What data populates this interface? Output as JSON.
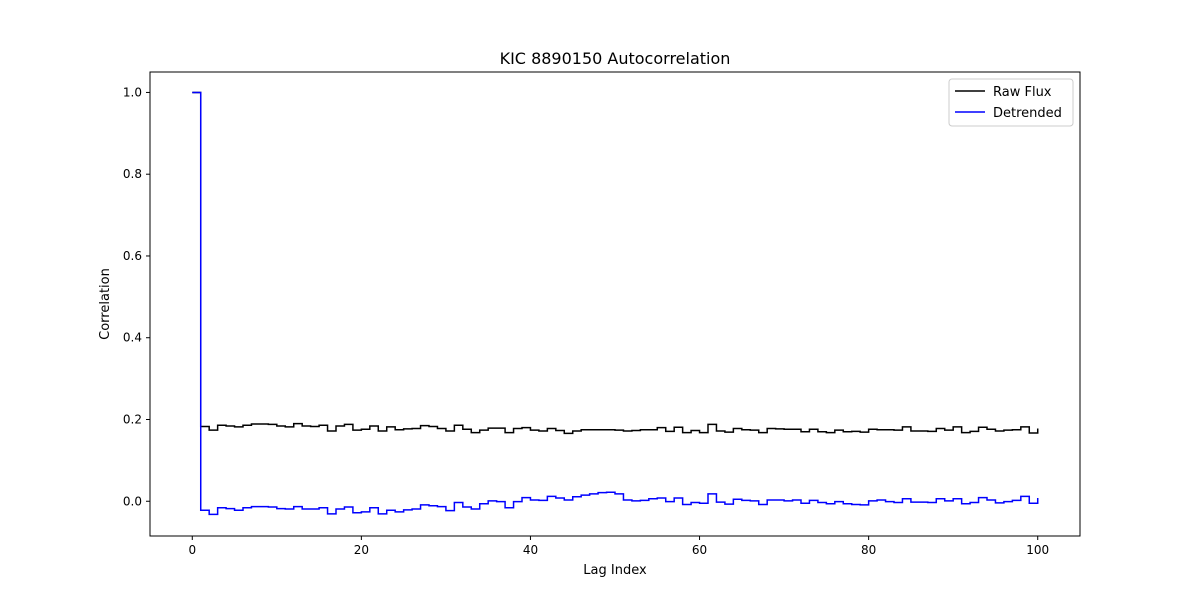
{
  "chart_data": {
    "type": "line",
    "drawstyle": "steps-post",
    "title": "KIC 8890150 Autocorrelation",
    "xlabel": "Lag Index",
    "ylabel": "Correlation",
    "xlim": [
      -5,
      105
    ],
    "ylim": [
      -0.085,
      1.05
    ],
    "xticks": [
      0,
      20,
      40,
      60,
      80,
      100
    ],
    "xtick_labels": [
      "0",
      "20",
      "40",
      "60",
      "80",
      "100"
    ],
    "yticks": [
      0.0,
      0.2,
      0.4,
      0.6,
      0.8,
      1.0
    ],
    "ytick_labels": [
      "0.0",
      "0.2",
      "0.4",
      "0.6",
      "0.8",
      "1.0"
    ],
    "grid": false,
    "legend_position": "upper right",
    "x": [
      0,
      1,
      2,
      3,
      4,
      5,
      6,
      7,
      8,
      9,
      10,
      11,
      12,
      13,
      14,
      15,
      16,
      17,
      18,
      19,
      20,
      21,
      22,
      23,
      24,
      25,
      26,
      27,
      28,
      29,
      30,
      31,
      32,
      33,
      34,
      35,
      36,
      37,
      38,
      39,
      40,
      41,
      42,
      43,
      44,
      45,
      46,
      47,
      48,
      49,
      50,
      51,
      52,
      53,
      54,
      55,
      56,
      57,
      58,
      59,
      60,
      61,
      62,
      63,
      64,
      65,
      66,
      67,
      68,
      69,
      70,
      71,
      72,
      73,
      74,
      75,
      76,
      77,
      78,
      79,
      80,
      81,
      82,
      83,
      84,
      85,
      86,
      87,
      88,
      89,
      90,
      91,
      92,
      93,
      94,
      95,
      96,
      97,
      98,
      99,
      100
    ],
    "series": [
      {
        "name": "Raw Flux",
        "color": "#000000",
        "values": [
          1.0,
          0.183,
          0.174,
          0.186,
          0.184,
          0.182,
          0.186,
          0.189,
          0.189,
          0.188,
          0.184,
          0.182,
          0.19,
          0.184,
          0.183,
          0.186,
          0.172,
          0.184,
          0.188,
          0.174,
          0.176,
          0.184,
          0.172,
          0.182,
          0.175,
          0.177,
          0.178,
          0.185,
          0.183,
          0.178,
          0.172,
          0.186,
          0.176,
          0.168,
          0.174,
          0.179,
          0.179,
          0.168,
          0.178,
          0.18,
          0.174,
          0.172,
          0.178,
          0.173,
          0.166,
          0.172,
          0.175,
          0.175,
          0.175,
          0.175,
          0.174,
          0.172,
          0.173,
          0.175,
          0.175,
          0.18,
          0.171,
          0.181,
          0.168,
          0.173,
          0.168,
          0.188,
          0.172,
          0.169,
          0.178,
          0.175,
          0.174,
          0.168,
          0.178,
          0.177,
          0.176,
          0.176,
          0.17,
          0.176,
          0.17,
          0.168,
          0.174,
          0.17,
          0.171,
          0.169,
          0.176,
          0.175,
          0.175,
          0.174,
          0.182,
          0.172,
          0.172,
          0.171,
          0.178,
          0.174,
          0.182,
          0.168,
          0.171,
          0.181,
          0.176,
          0.172,
          0.174,
          0.175,
          0.182,
          0.167,
          0.178
        ]
      },
      {
        "name": "Detrended",
        "color": "#0000ff",
        "values": [
          1.0,
          -0.022,
          -0.032,
          -0.016,
          -0.018,
          -0.022,
          -0.016,
          -0.013,
          -0.013,
          -0.014,
          -0.018,
          -0.019,
          -0.013,
          -0.019,
          -0.019,
          -0.016,
          -0.031,
          -0.019,
          -0.014,
          -0.028,
          -0.026,
          -0.016,
          -0.031,
          -0.022,
          -0.026,
          -0.021,
          -0.019,
          -0.009,
          -0.011,
          -0.013,
          -0.023,
          -0.003,
          -0.014,
          -0.019,
          -0.006,
          0.001,
          -0.001,
          -0.016,
          -0.001,
          0.009,
          0.003,
          0.002,
          0.012,
          0.008,
          0.003,
          0.011,
          0.015,
          0.018,
          0.021,
          0.022,
          0.018,
          0.003,
          0.001,
          0.002,
          0.006,
          0.008,
          -0.001,
          0.008,
          -0.008,
          -0.003,
          -0.005,
          0.018,
          -0.002,
          -0.007,
          0.005,
          0.002,
          0.001,
          -0.008,
          0.003,
          0.003,
          0.001,
          0.003,
          -0.005,
          0.002,
          -0.003,
          -0.006,
          -0.001,
          -0.006,
          -0.008,
          -0.009,
          0.001,
          0.003,
          -0.001,
          -0.003,
          0.006,
          -0.002,
          -0.002,
          -0.003,
          0.006,
          0.001,
          0.006,
          -0.006,
          -0.003,
          0.009,
          0.003,
          -0.004,
          -0.001,
          0.002,
          0.012,
          -0.005,
          0.008
        ]
      }
    ]
  }
}
